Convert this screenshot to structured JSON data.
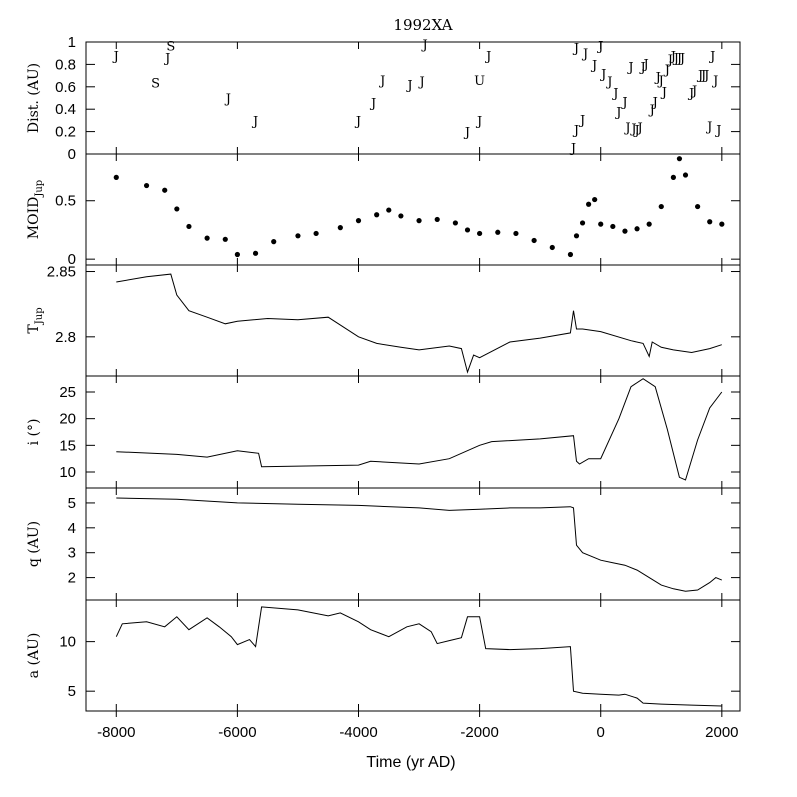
{
  "chart_data": {
    "type": "multi-panel",
    "title": "1992XA",
    "xlabel": "Time (yr AD)",
    "xlim": [
      -8500,
      2300
    ],
    "xticks": [
      -8000,
      -6000,
      -4000,
      -2000,
      0,
      2000
    ],
    "xtick_labels": [
      "-8000",
      "-6000",
      "-4000",
      "-2000",
      "0",
      "2000"
    ],
    "panels": [
      {
        "id": "dist",
        "ylabel": "Dist. (AU)",
        "type": "scatter-letters",
        "ylim": [
          0,
          1.0
        ],
        "yticks": [
          0,
          0.2,
          0.4,
          0.6,
          0.8,
          1
        ],
        "ytick_labels": [
          "0",
          "0.2",
          "0.4",
          "0.6",
          "0.8",
          "1"
        ],
        "encounters": [
          {
            "t": -8000,
            "d": 0.88,
            "label": "J"
          },
          {
            "t": -7100,
            "d": 0.97,
            "label": "S"
          },
          {
            "t": -7150,
            "d": 0.86,
            "label": "J"
          },
          {
            "t": -7350,
            "d": 0.64,
            "label": "S"
          },
          {
            "t": -6150,
            "d": 0.5,
            "label": "J"
          },
          {
            "t": -5700,
            "d": 0.3,
            "label": "J"
          },
          {
            "t": -4000,
            "d": 0.3,
            "label": "J"
          },
          {
            "t": -3750,
            "d": 0.46,
            "label": "J"
          },
          {
            "t": -3600,
            "d": 0.66,
            "label": "J"
          },
          {
            "t": -3150,
            "d": 0.62,
            "label": "J"
          },
          {
            "t": -2950,
            "d": 0.65,
            "label": "J"
          },
          {
            "t": -2900,
            "d": 0.98,
            "label": "J"
          },
          {
            "t": -2200,
            "d": 0.2,
            "label": "J"
          },
          {
            "t": -2000,
            "d": 0.3,
            "label": "J"
          },
          {
            "t": -2000,
            "d": 0.66,
            "label": "U"
          },
          {
            "t": -1850,
            "d": 0.88,
            "label": "J"
          },
          {
            "t": -450,
            "d": 0.06,
            "label": "J"
          },
          {
            "t": -400,
            "d": 0.22,
            "label": "J"
          },
          {
            "t": -300,
            "d": 0.31,
            "label": "J"
          },
          {
            "t": -400,
            "d": 0.95,
            "label": "J"
          },
          {
            "t": -250,
            "d": 0.9,
            "label": "J"
          },
          {
            "t": -100,
            "d": 0.8,
            "label": "J"
          },
          {
            "t": 0,
            "d": 0.97,
            "label": "J"
          },
          {
            "t": 50,
            "d": 0.72,
            "label": "J"
          },
          {
            "t": 150,
            "d": 0.65,
            "label": "J"
          },
          {
            "t": 250,
            "d": 0.55,
            "label": "J"
          },
          {
            "t": 300,
            "d": 0.38,
            "label": "J"
          },
          {
            "t": 400,
            "d": 0.47,
            "label": "J"
          },
          {
            "t": 450,
            "d": 0.24,
            "label": "J"
          },
          {
            "t": 500,
            "d": 0.78,
            "label": "J"
          },
          {
            "t": 550,
            "d": 0.23,
            "label": "J"
          },
          {
            "t": 600,
            "d": 0.22,
            "label": "J"
          },
          {
            "t": 650,
            "d": 0.24,
            "label": "J"
          },
          {
            "t": 700,
            "d": 0.78,
            "label": "J"
          },
          {
            "t": 750,
            "d": 0.81,
            "label": "J"
          },
          {
            "t": 850,
            "d": 0.4,
            "label": "J"
          },
          {
            "t": 900,
            "d": 0.47,
            "label": "J"
          },
          {
            "t": 950,
            "d": 0.69,
            "label": "J"
          },
          {
            "t": 1000,
            "d": 0.66,
            "label": "J"
          },
          {
            "t": 1050,
            "d": 0.56,
            "label": "J"
          },
          {
            "t": 1100,
            "d": 0.76,
            "label": "J"
          },
          {
            "t": 1150,
            "d": 0.85,
            "label": "J"
          },
          {
            "t": 1200,
            "d": 0.88,
            "label": "J"
          },
          {
            "t": 1250,
            "d": 0.86,
            "label": "J"
          },
          {
            "t": 1300,
            "d": 0.86,
            "label": "J"
          },
          {
            "t": 1350,
            "d": 0.86,
            "label": "J"
          },
          {
            "t": 1500,
            "d": 0.55,
            "label": "J"
          },
          {
            "t": 1550,
            "d": 0.57,
            "label": "J"
          },
          {
            "t": 1650,
            "d": 0.71,
            "label": "J"
          },
          {
            "t": 1700,
            "d": 0.71,
            "label": "J"
          },
          {
            "t": 1750,
            "d": 0.71,
            "label": "J"
          },
          {
            "t": 1800,
            "d": 0.25,
            "label": "J"
          },
          {
            "t": 1850,
            "d": 0.88,
            "label": "J"
          },
          {
            "t": 1900,
            "d": 0.66,
            "label": "J"
          },
          {
            "t": 1950,
            "d": 0.22,
            "label": "J"
          }
        ]
      },
      {
        "id": "moid",
        "ylabel": "MOID",
        "ylabel_sub": "Jup",
        "type": "scatter",
        "ylim": [
          -0.05,
          0.9
        ],
        "yticks": [
          0,
          0.5
        ],
        "ytick_labels": [
          "0",
          "0.5"
        ],
        "x": [
          -8000,
          -7500,
          -7200,
          -7000,
          -6800,
          -6500,
          -6200,
          -6000,
          -5700,
          -5400,
          -5000,
          -4700,
          -4300,
          -4000,
          -3700,
          -3500,
          -3300,
          -3000,
          -2700,
          -2400,
          -2200,
          -2000,
          -1700,
          -1400,
          -1100,
          -800,
          -500,
          -400,
          -300,
          -200,
          -100,
          0,
          200,
          400,
          600,
          800,
          1000,
          1200,
          1300,
          1400,
          1600,
          1800,
          2000
        ],
        "values": [
          0.7,
          0.63,
          0.59,
          0.43,
          0.28,
          0.18,
          0.17,
          0.04,
          0.05,
          0.15,
          0.2,
          0.22,
          0.27,
          0.33,
          0.38,
          0.42,
          0.37,
          0.33,
          0.34,
          0.31,
          0.25,
          0.22,
          0.23,
          0.22,
          0.16,
          0.1,
          0.04,
          0.2,
          0.31,
          0.47,
          0.51,
          0.3,
          0.28,
          0.24,
          0.26,
          0.3,
          0.45,
          0.7,
          0.86,
          0.72,
          0.45,
          0.32,
          0.3
        ]
      },
      {
        "id": "tjup",
        "ylabel": "T",
        "ylabel_sub": "Jup",
        "type": "line",
        "ylim": [
          2.77,
          2.855
        ],
        "yticks": [
          2.8,
          2.85
        ],
        "ytick_labels": [
          "2.8",
          "2.85"
        ],
        "x": [
          -8000,
          -7500,
          -7100,
          -7000,
          -6800,
          -6500,
          -6200,
          -6000,
          -5500,
          -5000,
          -4500,
          -4000,
          -3700,
          -3300,
          -3000,
          -2500,
          -2300,
          -2200,
          -2100,
          -2000,
          -1500,
          -1000,
          -500,
          -450,
          -400,
          -300,
          0,
          500,
          700,
          800,
          850,
          1000,
          1200,
          1500,
          1800,
          2000
        ],
        "values": [
          2.842,
          2.846,
          2.848,
          2.832,
          2.82,
          2.815,
          2.81,
          2.812,
          2.814,
          2.813,
          2.815,
          2.8,
          2.795,
          2.792,
          2.79,
          2.793,
          2.791,
          2.773,
          2.786,
          2.784,
          2.796,
          2.799,
          2.803,
          2.82,
          2.806,
          2.806,
          2.804,
          2.797,
          2.795,
          2.785,
          2.796,
          2.792,
          2.79,
          2.788,
          2.791,
          2.794
        ]
      },
      {
        "id": "inc",
        "ylabel": "i (°)",
        "type": "line",
        "ylim": [
          7,
          28
        ],
        "yticks": [
          10,
          15,
          20,
          25
        ],
        "ytick_labels": [
          "10",
          "15",
          "20",
          "25"
        ],
        "x": [
          -8000,
          -7000,
          -6500,
          -6000,
          -5650,
          -5600,
          -4000,
          -3800,
          -3000,
          -2500,
          -2000,
          -1800,
          -1000,
          -450,
          -400,
          -350,
          -200,
          0,
          300,
          500,
          700,
          900,
          1100,
          1300,
          1400,
          1600,
          1800,
          2000
        ],
        "values": [
          13.8,
          13.3,
          12.8,
          14.0,
          13.5,
          11.0,
          11.3,
          12.0,
          11.5,
          12.5,
          15.0,
          15.7,
          16.2,
          16.8,
          12.0,
          11.5,
          12.5,
          12.5,
          20.0,
          26.0,
          27.5,
          26.0,
          18.0,
          9.0,
          8.5,
          16.0,
          22.0,
          25.0
        ]
      },
      {
        "id": "q",
        "ylabel": "q (AU)",
        "type": "line",
        "ylim": [
          1.1,
          5.6
        ],
        "yticks": [
          2,
          3,
          4,
          5
        ],
        "ytick_labels": [
          "2",
          "3",
          "4",
          "5"
        ],
        "x": [
          -8000,
          -7000,
          -6000,
          -5000,
          -4000,
          -3000,
          -2500,
          -2000,
          -1500,
          -1000,
          -500,
          -450,
          -400,
          -300,
          -100,
          0,
          200,
          400,
          600,
          800,
          1000,
          1200,
          1400,
          1600,
          1800,
          1900,
          2000
        ],
        "values": [
          5.2,
          5.15,
          5.0,
          4.95,
          4.9,
          4.8,
          4.7,
          4.75,
          4.8,
          4.8,
          4.85,
          4.8,
          3.3,
          3.0,
          2.8,
          2.7,
          2.6,
          2.5,
          2.3,
          2.0,
          1.7,
          1.55,
          1.45,
          1.5,
          1.8,
          2.0,
          1.9
        ]
      },
      {
        "id": "a",
        "ylabel": "a (AU)",
        "type": "line",
        "ylim": [
          3,
          14.2
        ],
        "yticks": [
          5,
          10
        ],
        "ytick_labels": [
          "5",
          "10"
        ],
        "x": [
          -8000,
          -7900,
          -7500,
          -7200,
          -7000,
          -6800,
          -6500,
          -6300,
          -6100,
          -6000,
          -5800,
          -5700,
          -5600,
          -5000,
          -4500,
          -4300,
          -4000,
          -3800,
          -3500,
          -3200,
          -3000,
          -2800,
          -2700,
          -2500,
          -2300,
          -2200,
          -2000,
          -1900,
          -1500,
          -1000,
          -500,
          -450,
          -300,
          0,
          300,
          400,
          600,
          700,
          1000,
          1500,
          2000
        ],
        "values": [
          10.5,
          11.8,
          12.0,
          11.5,
          12.5,
          11.2,
          12.4,
          11.5,
          10.5,
          9.7,
          10.2,
          9.5,
          13.5,
          13.2,
          12.6,
          12.9,
          12.0,
          11.2,
          10.5,
          11.5,
          11.8,
          11.0,
          9.8,
          10.1,
          10.4,
          12.5,
          12.5,
          9.3,
          9.2,
          9.3,
          9.5,
          5.0,
          4.8,
          4.7,
          4.6,
          4.7,
          4.3,
          3.8,
          3.7,
          3.6,
          3.5
        ]
      }
    ]
  }
}
